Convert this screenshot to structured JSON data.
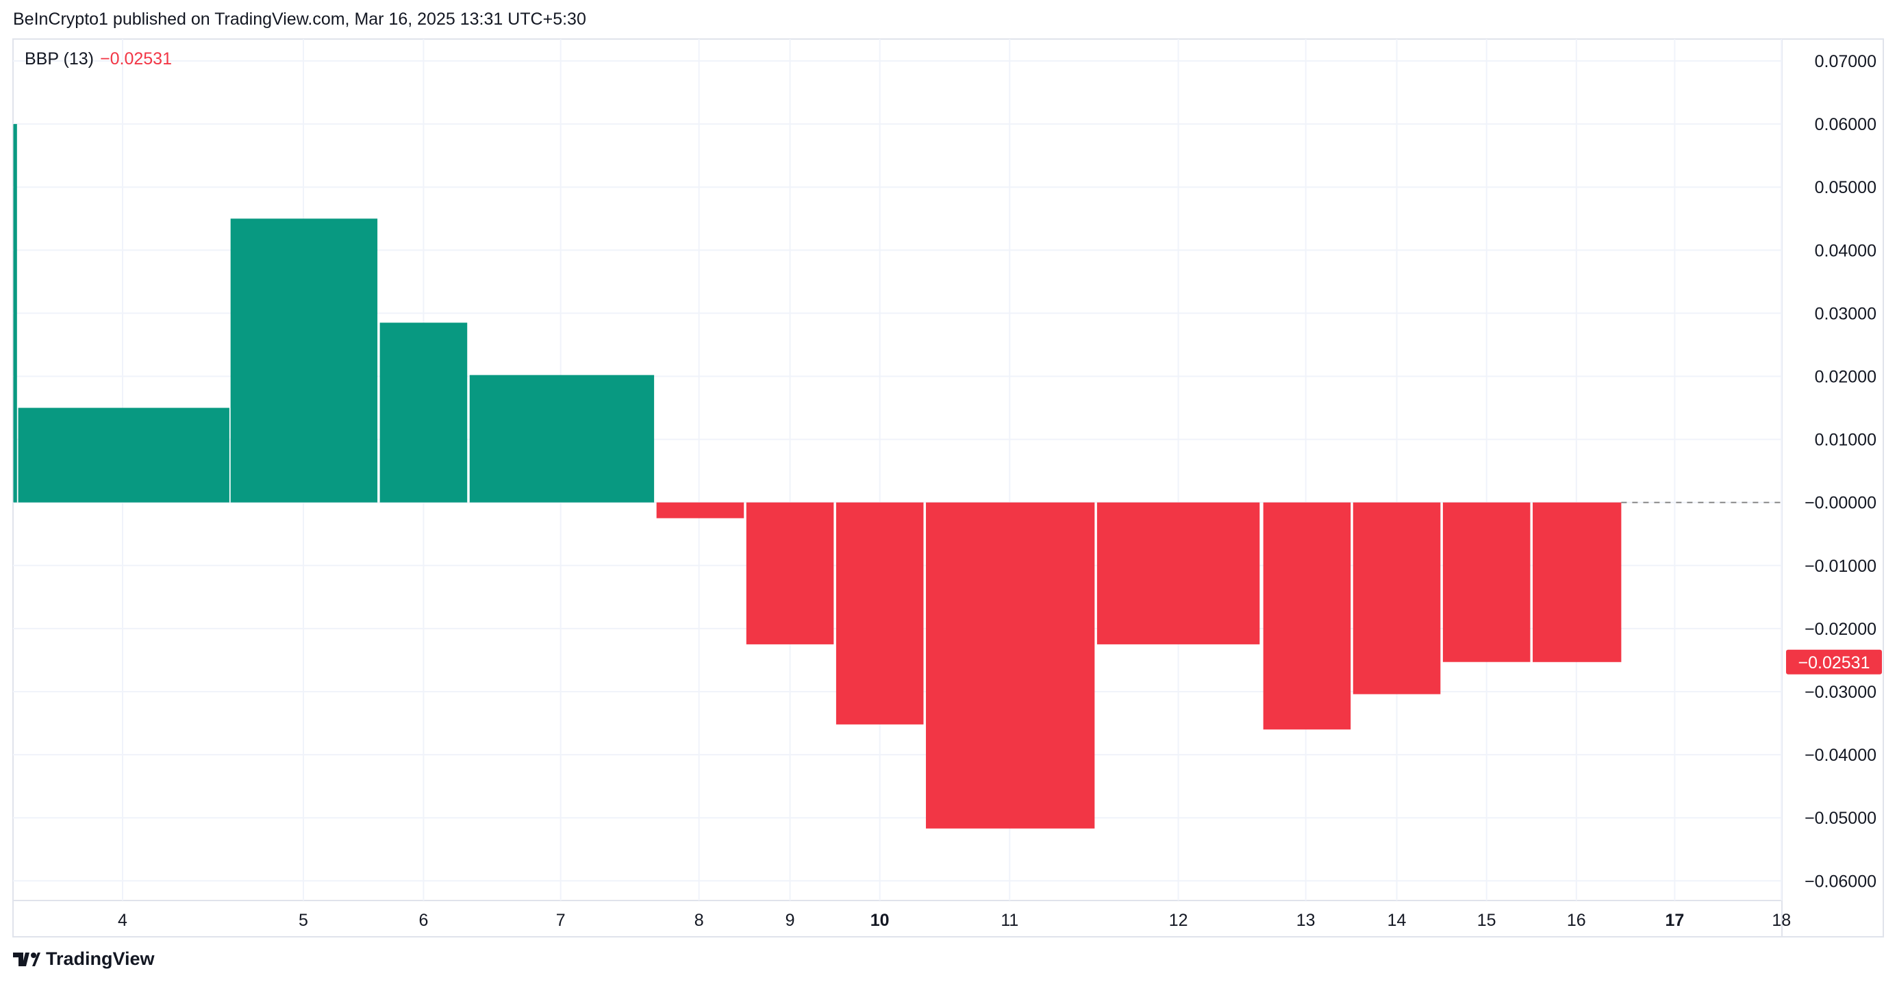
{
  "header": {
    "text": "BeInCrypto1 published on TradingView.com, Mar 16, 2025 13:31 UTC+5:30"
  },
  "legend": {
    "name": "BBP (13)",
    "value": "−0.02531"
  },
  "footer": {
    "brand": "TradingView"
  },
  "colors": {
    "up": "#089981",
    "down": "#f23645",
    "grid": "#f0f3fa",
    "text": "#131722"
  },
  "chart_data": {
    "type": "bar",
    "title": "BBP (13)",
    "series": [
      {
        "name": "BBP (13)",
        "values": [
          0.06,
          0.015,
          0.045,
          0.0285,
          0.0202,
          -0.0025,
          -0.0225,
          -0.0352,
          -0.0517,
          -0.0225,
          -0.036,
          -0.0304,
          -0.0253,
          -0.02531
        ]
      }
    ],
    "x_ticks": [
      {
        "label": "4",
        "bold": false
      },
      {
        "label": "5",
        "bold": false
      },
      {
        "label": "6",
        "bold": false
      },
      {
        "label": "7",
        "bold": false
      },
      {
        "label": "8",
        "bold": false
      },
      {
        "label": "9",
        "bold": false
      },
      {
        "label": "10",
        "bold": true
      },
      {
        "label": "11",
        "bold": false
      },
      {
        "label": "12",
        "bold": false
      },
      {
        "label": "13",
        "bold": false
      },
      {
        "label": "14",
        "bold": false
      },
      {
        "label": "15",
        "bold": false
      },
      {
        "label": "16",
        "bold": false
      },
      {
        "label": "17",
        "bold": true
      },
      {
        "label": "18",
        "bold": false
      }
    ],
    "y_ticks": [
      "0.07000",
      "0.06000",
      "0.05000",
      "0.04000",
      "0.03000",
      "0.02000",
      "0.01000",
      "−0.00000",
      "−0.01000",
      "−0.02000",
      "−0.03000",
      "−0.04000",
      "−0.05000",
      "−0.06000"
    ],
    "ylim": [
      -0.06,
      0.07
    ],
    "last_value_label": "−0.02531",
    "grid": true
  }
}
